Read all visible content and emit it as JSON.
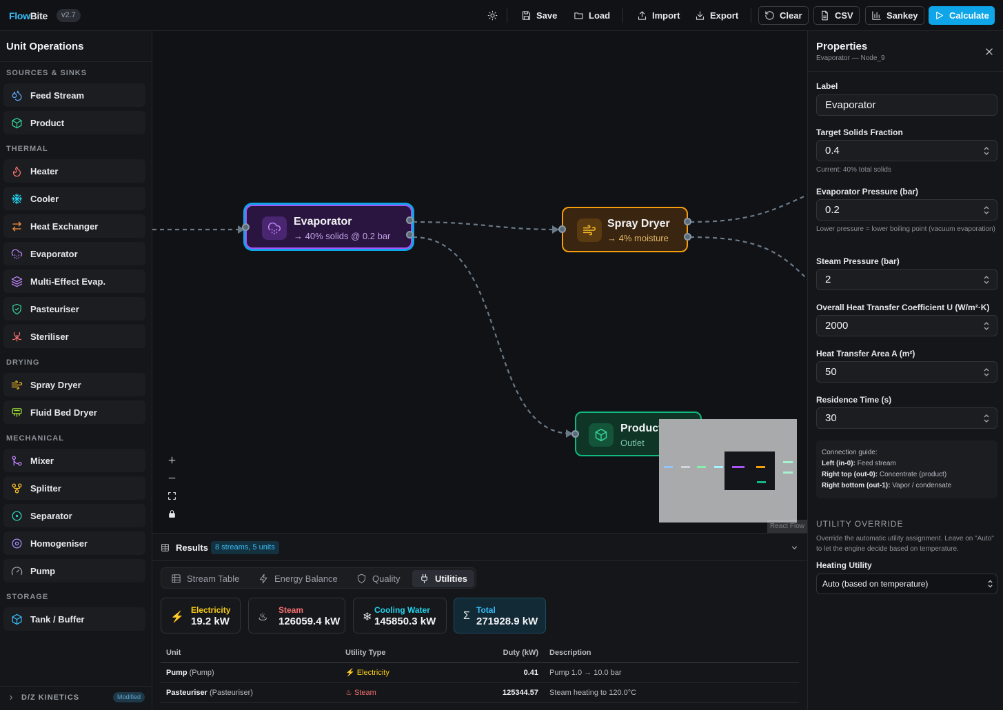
{
  "app": {
    "brand_a": "Flow",
    "brand_b": "Bite",
    "version": "v2.7"
  },
  "toolbar": {
    "save": "Save",
    "load": "Load",
    "import": "Import",
    "export": "Export",
    "clear": "Clear",
    "csv": "CSV",
    "sankey": "Sankey",
    "calculate": "Calculate"
  },
  "sidebar": {
    "title": "Unit Operations",
    "categories": {
      "sources": "SOURCES & SINKS",
      "thermal": "THERMAL",
      "drying": "DRYING",
      "mechanical": "MECHANICAL",
      "storage": "STORAGE"
    },
    "items": {
      "feed_stream": "Feed Stream",
      "product": "Product",
      "heater": "Heater",
      "cooler": "Cooler",
      "heat_exchanger": "Heat Exchanger",
      "evaporator": "Evaporator",
      "multi_effect": "Multi-Effect Evap.",
      "pasteuriser": "Pasteuriser",
      "steriliser": "Steriliser",
      "spray_dryer": "Spray Dryer",
      "fluid_bed": "Fluid Bed Dryer",
      "mixer": "Mixer",
      "splitter": "Splitter",
      "separator": "Separator",
      "homogeniser": "Homogeniser",
      "pump": "Pump",
      "tank": "Tank / Buffer"
    },
    "footer_label": "D/Z KINETICS",
    "footer_badge": "Modified"
  },
  "nodes": {
    "evaporator": {
      "title": "Evaporator",
      "subtitle": "→ 40% solids @ 0.2 bar"
    },
    "spray_dryer": {
      "title": "Spray Dryer",
      "subtitle": "→ 4% moisture"
    },
    "product": {
      "title": "Product",
      "subtitle": "Outlet"
    }
  },
  "canvas": {
    "attribution": "React Flow"
  },
  "results": {
    "title": "Results",
    "badge": "8 streams, 5 units",
    "tabs": {
      "stream_table": "Stream Table",
      "energy_balance": "Energy Balance",
      "quality": "Quality",
      "utilities": "Utilities"
    },
    "cards": {
      "electricity": {
        "label": "Electricity",
        "value": "19.2 kW"
      },
      "steam": {
        "label": "Steam",
        "value": "126059.4 kW"
      },
      "cooling": {
        "label": "Cooling Water",
        "value": "145850.3 kW"
      },
      "total": {
        "label": "Total",
        "value": "271928.9 kW"
      }
    },
    "table": {
      "headers": {
        "unit": "Unit",
        "type": "Utility Type",
        "duty": "Duty (kW)",
        "desc": "Description"
      },
      "rows": [
        {
          "unit": "Pump",
          "unit_type": "(Pump)",
          "utility": "Electricity",
          "duty": "0.41",
          "desc": "Pump 1.0 → 10.0 bar"
        },
        {
          "unit": "Pasteuriser",
          "unit_type": "(Pasteuriser)",
          "utility": "Steam",
          "duty": "125344.57",
          "desc": "Steam heating to 120.0°C"
        }
      ]
    }
  },
  "properties": {
    "title": "Properties",
    "subtitle": "Evaporator — Node_9",
    "label_label": "Label",
    "label_value": "Evaporator",
    "solids_label": "Target Solids Fraction",
    "solids_value": "0.4",
    "solids_help": "Current: 40% total solids",
    "evap_p_label": "Evaporator Pressure (bar)",
    "evap_p_value": "0.2",
    "evap_p_help": "Lower pressure = lower boiling point (vacuum evaporation)",
    "steam_p_label": "Steam Pressure (bar)",
    "steam_p_value": "2",
    "u_label": "Overall Heat Transfer Coefficient U (W/m²·K)",
    "u_value": "2000",
    "area_label": "Heat Transfer Area A (m²)",
    "area_value": "50",
    "res_label": "Residence Time (s)",
    "res_value": "30",
    "guide": {
      "title": "Connection guide:",
      "left_k": "Left (in-0):",
      "left_v": "Feed stream",
      "rt_k": "Right top (out-0):",
      "rt_v": "Concentrate (product)",
      "rb_k": "Right bottom (out-1):",
      "rb_v": "Vapor / condensate"
    },
    "override_section": "UTILITY OVERRIDE",
    "override_help": "Override the automatic utility assignment. Leave on \"Auto\" to let the engine decide based on temperature.",
    "heating_label": "Heating Utility",
    "heating_value": "Auto (based on temperature)"
  }
}
